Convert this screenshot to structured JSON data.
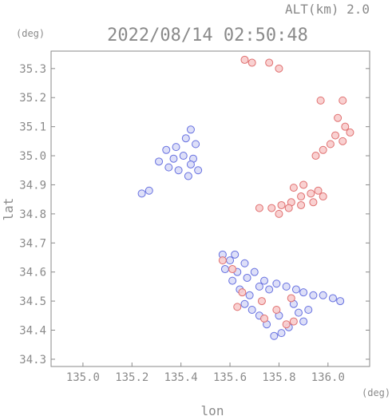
{
  "chart_data": {
    "type": "scatter",
    "title": "2022/08/14 02:50:48",
    "subtitle": "ALT(km) 2.0",
    "xlabel": "lon",
    "ylabel": "lat",
    "x_unit": "(deg)",
    "y_unit": "(deg)",
    "xlim": [
      134.87,
      136.17
    ],
    "ylim": [
      34.275,
      35.36
    ],
    "x_ticks": [
      135.0,
      135.2,
      135.4,
      135.6,
      135.8,
      136.0
    ],
    "x_tick_labels": [
      "135.0",
      "135.2",
      "135.4",
      "135.6",
      "135.8",
      "136.0"
    ],
    "y_ticks": [
      34.3,
      34.4,
      34.5,
      34.6,
      34.7,
      34.8,
      34.9,
      35.0,
      35.1,
      35.2,
      35.3
    ],
    "y_tick_labels": [
      "34.3",
      "34.4",
      "34.5",
      "34.6",
      "34.7",
      "34.8",
      "34.9",
      "35.0",
      "35.1",
      "35.2",
      "35.3"
    ],
    "grid": false,
    "colors": {
      "axis": "#8a8a8a",
      "blue_fill": "#d9dcf7",
      "blue_edge": "#6670e0",
      "red_fill": "#f8cccc",
      "red_edge": "#e07070"
    },
    "series": [
      {
        "color": "blue",
        "points": [
          {
            "x": 135.31,
            "y": 34.98
          },
          {
            "x": 135.34,
            "y": 35.02
          },
          {
            "x": 135.38,
            "y": 35.03
          },
          {
            "x": 135.42,
            "y": 35.06
          },
          {
            "x": 135.44,
            "y": 35.09
          },
          {
            "x": 135.46,
            "y": 35.04
          },
          {
            "x": 135.45,
            "y": 34.99
          },
          {
            "x": 135.47,
            "y": 34.95
          },
          {
            "x": 135.43,
            "y": 34.93
          },
          {
            "x": 135.39,
            "y": 34.95
          },
          {
            "x": 135.35,
            "y": 34.96
          },
          {
            "x": 135.41,
            "y": 35.0
          },
          {
            "x": 135.37,
            "y": 34.99
          },
          {
            "x": 135.44,
            "y": 34.97
          },
          {
            "x": 135.24,
            "y": 34.87
          },
          {
            "x": 135.27,
            "y": 34.88
          },
          {
            "x": 135.57,
            "y": 34.66
          },
          {
            "x": 135.6,
            "y": 34.64
          },
          {
            "x": 135.62,
            "y": 34.66
          },
          {
            "x": 135.58,
            "y": 34.61
          },
          {
            "x": 135.63,
            "y": 34.6
          },
          {
            "x": 135.66,
            "y": 34.63
          },
          {
            "x": 135.67,
            "y": 34.58
          },
          {
            "x": 135.7,
            "y": 34.6
          },
          {
            "x": 135.72,
            "y": 34.55
          },
          {
            "x": 135.74,
            "y": 34.57
          },
          {
            "x": 135.76,
            "y": 34.54
          },
          {
            "x": 135.79,
            "y": 34.56
          },
          {
            "x": 135.83,
            "y": 34.55
          },
          {
            "x": 135.87,
            "y": 34.54
          },
          {
            "x": 135.9,
            "y": 34.53
          },
          {
            "x": 135.94,
            "y": 34.52
          },
          {
            "x": 135.98,
            "y": 34.52
          },
          {
            "x": 136.02,
            "y": 34.51
          },
          {
            "x": 136.05,
            "y": 34.5
          },
          {
            "x": 135.61,
            "y": 34.57
          },
          {
            "x": 135.64,
            "y": 34.54
          },
          {
            "x": 135.68,
            "y": 34.52
          },
          {
            "x": 135.66,
            "y": 34.49
          },
          {
            "x": 135.69,
            "y": 34.47
          },
          {
            "x": 135.72,
            "y": 34.45
          },
          {
            "x": 135.75,
            "y": 34.42
          },
          {
            "x": 135.86,
            "y": 34.49
          },
          {
            "x": 135.88,
            "y": 34.46
          },
          {
            "x": 135.9,
            "y": 34.43
          },
          {
            "x": 135.92,
            "y": 34.47
          },
          {
            "x": 135.78,
            "y": 34.38
          },
          {
            "x": 135.81,
            "y": 34.39
          },
          {
            "x": 135.84,
            "y": 34.41
          },
          {
            "x": 135.8,
            "y": 34.45
          }
        ]
      },
      {
        "color": "red",
        "points": [
          {
            "x": 135.66,
            "y": 35.33
          },
          {
            "x": 135.69,
            "y": 35.32
          },
          {
            "x": 135.76,
            "y": 35.32
          },
          {
            "x": 135.8,
            "y": 35.3
          },
          {
            "x": 136.06,
            "y": 35.19
          },
          {
            "x": 136.04,
            "y": 35.13
          },
          {
            "x": 136.07,
            "y": 35.1
          },
          {
            "x": 136.03,
            "y": 35.07
          },
          {
            "x": 136.01,
            "y": 35.04
          },
          {
            "x": 136.06,
            "y": 35.05
          },
          {
            "x": 136.09,
            "y": 35.08
          },
          {
            "x": 135.98,
            "y": 35.02
          },
          {
            "x": 135.95,
            "y": 35.0
          },
          {
            "x": 135.97,
            "y": 35.19
          },
          {
            "x": 135.72,
            "y": 34.82
          },
          {
            "x": 135.77,
            "y": 34.82
          },
          {
            "x": 135.81,
            "y": 34.83
          },
          {
            "x": 135.85,
            "y": 34.84
          },
          {
            "x": 135.89,
            "y": 34.86
          },
          {
            "x": 135.93,
            "y": 34.87
          },
          {
            "x": 135.96,
            "y": 34.88
          },
          {
            "x": 135.98,
            "y": 34.86
          },
          {
            "x": 135.94,
            "y": 34.84
          },
          {
            "x": 135.89,
            "y": 34.83
          },
          {
            "x": 135.84,
            "y": 34.82
          },
          {
            "x": 135.8,
            "y": 34.8
          },
          {
            "x": 135.86,
            "y": 34.89
          },
          {
            "x": 135.9,
            "y": 34.9
          },
          {
            "x": 135.57,
            "y": 34.64
          },
          {
            "x": 135.61,
            "y": 34.61
          },
          {
            "x": 135.65,
            "y": 34.53
          },
          {
            "x": 135.73,
            "y": 34.5
          },
          {
            "x": 135.85,
            "y": 34.51
          },
          {
            "x": 135.79,
            "y": 34.47
          },
          {
            "x": 135.74,
            "y": 34.44
          },
          {
            "x": 135.83,
            "y": 34.42
          },
          {
            "x": 135.86,
            "y": 34.43
          },
          {
            "x": 135.63,
            "y": 34.48
          }
        ]
      }
    ]
  }
}
